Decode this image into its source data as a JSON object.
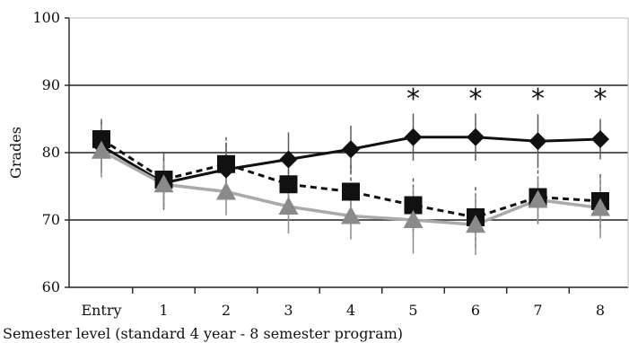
{
  "chart_data": {
    "type": "line",
    "title": "",
    "xlabel": "Semester level (standard 4 year - 8 semester program)",
    "ylabel": "Grades",
    "categories": [
      "Entry",
      "1",
      "2",
      "3",
      "4",
      "5",
      "6",
      "7",
      "8"
    ],
    "ylim": [
      60,
      100
    ],
    "yticks": [
      60,
      70,
      80,
      90,
      100
    ],
    "grid": "horizontal",
    "legend": "none",
    "significance_marker": "*",
    "significant_categories": [
      "5",
      "6",
      "7",
      "8"
    ],
    "series": [
      {
        "marker": "diamond",
        "line_style": "solid",
        "color": "#111111",
        "values": [
          81.0,
          75.5,
          77.5,
          79.0,
          80.5,
          82.3,
          82.3,
          81.7,
          82.0
        ],
        "errors": [
          4.0,
          4.0,
          4.0,
          4.0,
          3.5,
          3.5,
          3.5,
          4.0,
          3.0
        ]
      },
      {
        "marker": "square",
        "line_style": "dashed",
        "color": "#111111",
        "values": [
          82.0,
          76.0,
          78.3,
          75.3,
          74.2,
          72.2,
          70.4,
          73.4,
          72.8
        ],
        "errors": [
          2.5,
          4.0,
          4.0,
          4.0,
          4.0,
          4.0,
          4.5,
          4.0,
          4.0
        ]
      },
      {
        "marker": "triangle",
        "line_style": "solid",
        "color": "#aaaaaa",
        "values": [
          80.3,
          75.3,
          74.2,
          72.0,
          70.6,
          70.0,
          69.3,
          73.0,
          71.8
        ],
        "errors": [
          4.0,
          3.5,
          3.5,
          4.0,
          3.5,
          5.0,
          4.5,
          3.5,
          4.5
        ]
      }
    ]
  }
}
